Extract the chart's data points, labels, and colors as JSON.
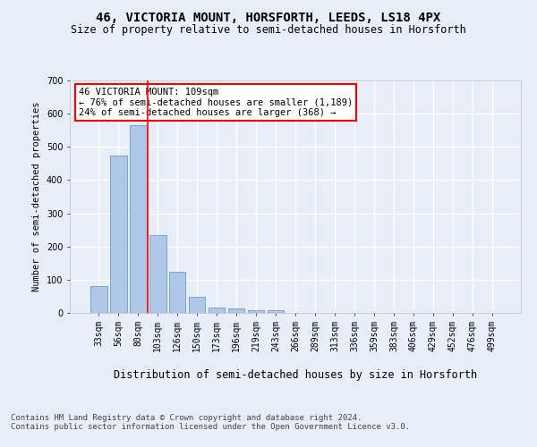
{
  "title": "46, VICTORIA MOUNT, HORSFORTH, LEEDS, LS18 4PX",
  "subtitle": "Size of property relative to semi-detached houses in Horsforth",
  "xlabel": "Distribution of semi-detached houses by size in Horsforth",
  "ylabel": "Number of semi-detached properties",
  "categories": [
    "33sqm",
    "56sqm",
    "80sqm",
    "103sqm",
    "126sqm",
    "150sqm",
    "173sqm",
    "196sqm",
    "219sqm",
    "243sqm",
    "266sqm",
    "289sqm",
    "313sqm",
    "336sqm",
    "359sqm",
    "383sqm",
    "406sqm",
    "429sqm",
    "452sqm",
    "476sqm",
    "499sqm"
  ],
  "values": [
    80,
    475,
    565,
    235,
    123,
    48,
    17,
    13,
    9,
    7,
    1,
    0,
    0,
    0,
    0,
    0,
    0,
    0,
    0,
    0,
    0
  ],
  "bar_color": "#aec6e8",
  "bar_edge_color": "#5a8fc2",
  "vline_x_index": 2,
  "vline_color": "red",
  "annotation_text": "46 VICTORIA MOUNT: 109sqm\n← 76% of semi-detached houses are smaller (1,189)\n24% of semi-detached houses are larger (368) →",
  "annotation_box_color": "white",
  "annotation_box_edge_color": "red",
  "ylim": [
    0,
    700
  ],
  "yticks": [
    0,
    100,
    200,
    300,
    400,
    500,
    600,
    700
  ],
  "footer_text": "Contains HM Land Registry data © Crown copyright and database right 2024.\nContains public sector information licensed under the Open Government Licence v3.0.",
  "background_color": "#e8eef8",
  "plot_bg_color": "#e8eef8",
  "grid_color": "white",
  "title_fontsize": 10,
  "subtitle_fontsize": 8.5,
  "xlabel_fontsize": 8.5,
  "ylabel_fontsize": 7.5,
  "footer_fontsize": 6.5,
  "tick_fontsize": 7,
  "annotation_fontsize": 7.5
}
